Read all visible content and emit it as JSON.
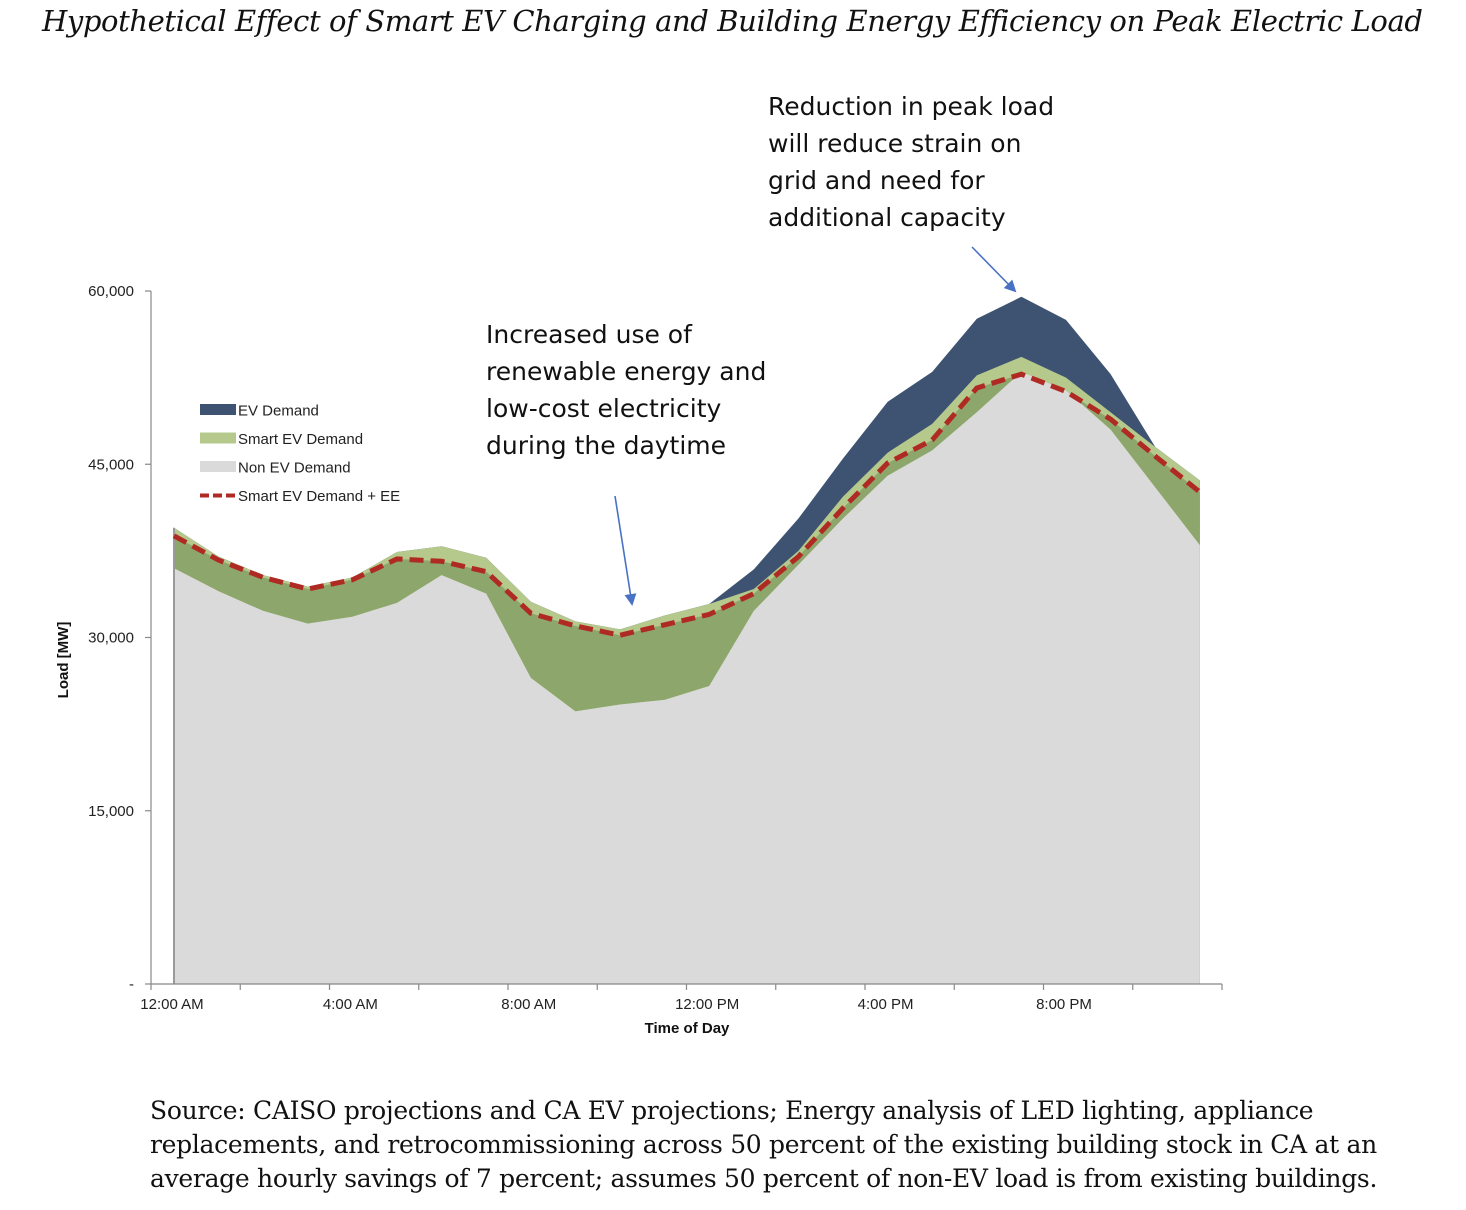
{
  "chart_data": {
    "type": "area",
    "title": "Hypothetical Effect of Smart EV Charging and Building Energy Efficiency on Peak Electric Load",
    "xlabel": "Time of Day",
    "ylabel": "Load [MW]",
    "ylim": [
      0,
      60000
    ],
    "y_ticks": [
      {
        "value": 0,
        "label": "-"
      },
      {
        "value": 15000,
        "label": "15,000"
      },
      {
        "value": 30000,
        "label": "30,000"
      },
      {
        "value": 45000,
        "label": "45,000"
      },
      {
        "value": 60000,
        "label": "60,000"
      }
    ],
    "x_ticks": [
      {
        "hour": 0,
        "label": "12:00 AM"
      },
      {
        "hour": 4,
        "label": "4:00 AM"
      },
      {
        "hour": 8,
        "label": "8:00 AM"
      },
      {
        "hour": 12,
        "label": "12:00 PM"
      },
      {
        "hour": 16,
        "label": "4:00 PM"
      },
      {
        "hour": 20,
        "label": "8:00 PM"
      }
    ],
    "x_hours": [
      0,
      1,
      2,
      3,
      4,
      5,
      6,
      7,
      8,
      9,
      10,
      11,
      12,
      13,
      14,
      15,
      16,
      17,
      18,
      19,
      20,
      21,
      22,
      23
    ],
    "series": [
      {
        "name": "Non EV Demand",
        "color": "#dadada",
        "values": [
          36000,
          34000,
          32300,
          31200,
          31800,
          33000,
          35400,
          33800,
          26500,
          23600,
          24200,
          24600,
          25800,
          32300,
          36300,
          40300,
          44000,
          46200,
          49500,
          53000,
          51400,
          48000,
          43000,
          38000
        ]
      },
      {
        "name": "Smart EV Demand",
        "color": "#b5c98c",
        "values": [
          39500,
          37000,
          35400,
          34400,
          35200,
          37400,
          37900,
          36900,
          33100,
          31400,
          30700,
          31900,
          32900,
          34200,
          37500,
          42200,
          46000,
          48500,
          52700,
          54300,
          52500,
          49500,
          46500,
          43600
        ]
      },
      {
        "name": "EV Demand",
        "color": "#3d5371",
        "values": [
          39500,
          37000,
          35400,
          34400,
          35200,
          37400,
          37900,
          36900,
          33100,
          31400,
          30700,
          31900,
          32900,
          35900,
          40300,
          45500,
          50400,
          53000,
          57600,
          59500,
          57500,
          52800,
          46500,
          43600
        ]
      },
      {
        "name": "Smart EV Demand + EE",
        "color": "#b02a24",
        "style": "dashed",
        "values": [
          38800,
          36700,
          35200,
          34200,
          35000,
          36800,
          36600,
          35700,
          32100,
          31000,
          30200,
          31100,
          32000,
          33800,
          37000,
          41200,
          45100,
          47100,
          51600,
          52800,
          51300,
          48900,
          45700,
          42600
        ]
      }
    ],
    "legend": {
      "placement": "left"
    },
    "annotations": [
      {
        "text": "Reduction in peak load\nwill reduce strain on\ngrid and need for\nadditional capacity",
        "points_to_hour": 20
      },
      {
        "text": "Increased use of\nrenewable energy and\nlow-cost electricity\nduring the daytime",
        "points_to_hour": 10.5
      }
    ]
  },
  "source_note": "Source: CAISO projections and CA EV projections; Energy analysis of LED lighting, appliance replacements, and retrocommissioning across 50 percent of the existing building stock in CA at an average hourly savings of 7 percent; assumes 50 percent of non-EV load is from existing buildings."
}
